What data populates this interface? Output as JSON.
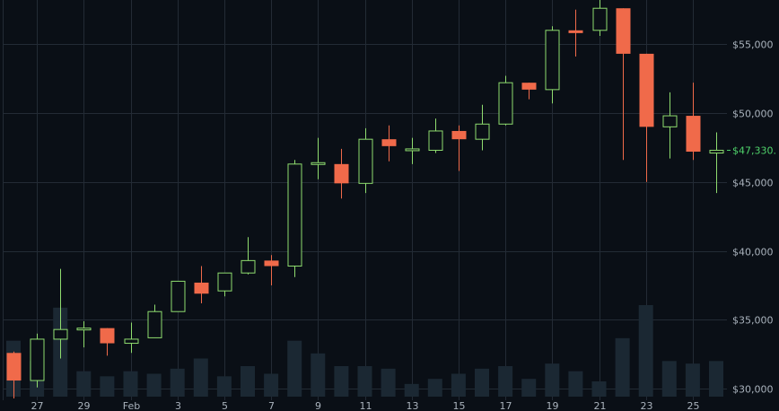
{
  "chart_data": {
    "type": "candlestick",
    "currency_prefix": "$",
    "ylim": [
      29300,
      58200
    ],
    "y_ticks": [
      {
        "value": 30000,
        "label": "$30,000"
      },
      {
        "value": 35000,
        "label": "$35,000"
      },
      {
        "value": 40000,
        "label": "$40,000"
      },
      {
        "value": 45000,
        "label": "$45,000"
      },
      {
        "value": 50000,
        "label": "$50,000"
      },
      {
        "value": 55000,
        "label": "$55,000"
      }
    ],
    "x_ticks": [
      {
        "index": 1,
        "label": "27"
      },
      {
        "index": 3,
        "label": "29"
      },
      {
        "index": 5,
        "label": "Feb"
      },
      {
        "index": 7,
        "label": "3"
      },
      {
        "index": 9,
        "label": "5"
      },
      {
        "index": 11,
        "label": "7"
      },
      {
        "index": 13,
        "label": "9"
      },
      {
        "index": 15,
        "label": "11"
      },
      {
        "index": 17,
        "label": "13"
      },
      {
        "index": 19,
        "label": "15"
      },
      {
        "index": 21,
        "label": "17"
      },
      {
        "index": 23,
        "label": "19"
      },
      {
        "index": 25,
        "label": "21"
      },
      {
        "index": 27,
        "label": "23"
      },
      {
        "index": 29,
        "label": "25"
      }
    ],
    "last_price_label": "$47,330.",
    "candles": [
      {
        "open": 32600,
        "high": 32700,
        "low": 29300,
        "close": 30600,
        "volume": 22
      },
      {
        "open": 30600,
        "high": 34000,
        "low": 30100,
        "close": 33600,
        "volume": 14
      },
      {
        "open": 33600,
        "high": 38700,
        "low": 32200,
        "close": 34300,
        "volume": 35
      },
      {
        "open": 34300,
        "high": 34900,
        "low": 33000,
        "close": 34400,
        "volume": 10
      },
      {
        "open": 34400,
        "high": 34400,
        "low": 32400,
        "close": 33300,
        "volume": 8
      },
      {
        "open": 33300,
        "high": 34800,
        "low": 32600,
        "close": 33600,
        "volume": 10
      },
      {
        "open": 33700,
        "high": 36100,
        "low": 33700,
        "close": 35600,
        "volume": 9
      },
      {
        "open": 35600,
        "high": 37800,
        "low": 35600,
        "close": 37800,
        "volume": 11
      },
      {
        "open": 37700,
        "high": 38900,
        "low": 36200,
        "close": 36900,
        "volume": 15
      },
      {
        "open": 37100,
        "high": 38400,
        "low": 36700,
        "close": 38400,
        "volume": 8
      },
      {
        "open": 38400,
        "high": 41000,
        "low": 38300,
        "close": 39300,
        "volume": 12
      },
      {
        "open": 39300,
        "high": 39700,
        "low": 37500,
        "close": 38900,
        "volume": 9
      },
      {
        "open": 38900,
        "high": 46600,
        "low": 38100,
        "close": 46300,
        "volume": 22
      },
      {
        "open": 46300,
        "high": 48200,
        "low": 45200,
        "close": 46400,
        "volume": 17
      },
      {
        "open": 46300,
        "high": 47400,
        "low": 43800,
        "close": 44900,
        "volume": 12
      },
      {
        "open": 44900,
        "high": 48900,
        "low": 44200,
        "close": 48100,
        "volume": 12
      },
      {
        "open": 48100,
        "high": 49100,
        "low": 46500,
        "close": 47600,
        "volume": 11
      },
      {
        "open": 47400,
        "high": 48200,
        "low": 46300,
        "close": 47400,
        "volume": 5
      },
      {
        "open": 47300,
        "high": 49600,
        "low": 47100,
        "close": 48700,
        "volume": 7
      },
      {
        "open": 48700,
        "high": 49100,
        "low": 45800,
        "close": 48100,
        "volume": 9
      },
      {
        "open": 48100,
        "high": 50600,
        "low": 47300,
        "close": 49200,
        "volume": 11
      },
      {
        "open": 49200,
        "high": 52700,
        "low": 49100,
        "close": 52200,
        "volume": 12
      },
      {
        "open": 52200,
        "high": 52200,
        "low": 51000,
        "close": 51700,
        "volume": 7
      },
      {
        "open": 51700,
        "high": 56300,
        "low": 50700,
        "close": 56000,
        "volume": 13
      },
      {
        "open": 56000,
        "high": 57500,
        "low": 54100,
        "close": 55800,
        "volume": 10
      },
      {
        "open": 56000,
        "high": 58200,
        "low": 55600,
        "close": 57600,
        "volume": 6
      },
      {
        "open": 57600,
        "high": 57600,
        "low": 46600,
        "close": 54300,
        "volume": 23
      },
      {
        "open": 54300,
        "high": 54300,
        "low": 45000,
        "close": 49000,
        "volume": 36
      },
      {
        "open": 49000,
        "high": 51500,
        "low": 46700,
        "close": 49800,
        "volume": 14
      },
      {
        "open": 49800,
        "high": 52200,
        "low": 46600,
        "close": 47200,
        "volume": 13
      },
      {
        "open": 47100,
        "high": 48600,
        "low": 44200,
        "close": 47300,
        "volume": 14
      }
    ]
  },
  "colors": {
    "background": "#0a0f16",
    "grid": "#232b35",
    "up": "#8fdc6f",
    "down": "#f06a4a",
    "volume": "#1b2833",
    "axis_text": "#a9b2bc",
    "last_price_text": "#4fd26a"
  }
}
